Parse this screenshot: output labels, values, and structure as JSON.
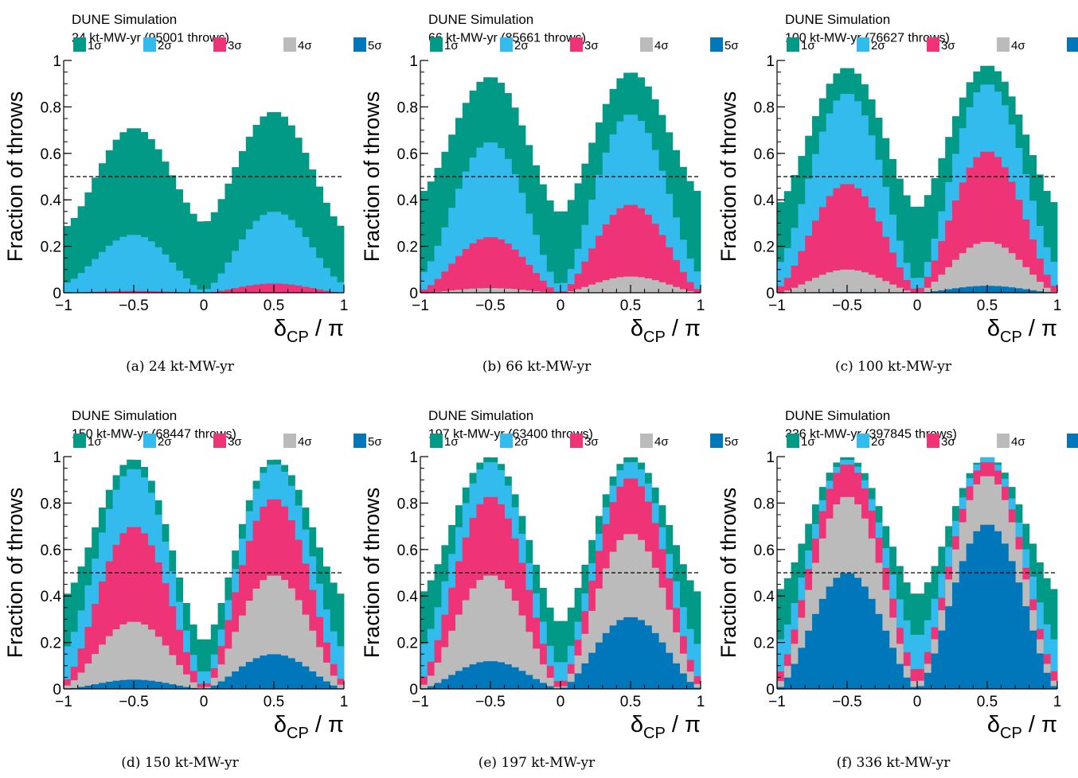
{
  "legend_levels": [
    {
      "label": "1σ",
      "color": "#009a86"
    },
    {
      "label": "2σ",
      "color": "#33bbee"
    },
    {
      "label": "3σ",
      "color": "#ee3377"
    },
    {
      "label": "4σ",
      "color": "#bbbbbb"
    },
    {
      "label": "5σ",
      "color": "#0077bb"
    }
  ],
  "common": {
    "simulation_label": "DUNE Simulation",
    "ylabel": "Fraction of throws",
    "xlabel_main": "δ",
    "xlabel_sub": "CP",
    "xlabel_tail": " / π",
    "x_ticks": [
      "−1",
      "−0.5",
      "0",
      "0.5",
      "1"
    ],
    "y_ticks": [
      "0",
      "0.2",
      "0.4",
      "0.6",
      "0.8",
      "1"
    ],
    "reference_line": 0.5
  },
  "chart_data": [
    {
      "type": "area",
      "panel": "a",
      "exposure_label": "24 kt-MW-yr (95001 throws)",
      "caption": "(a) 24 kt-MW-yr",
      "xlim": [
        -1,
        1
      ],
      "ylim": [
        0,
        1
      ],
      "series": [
        {
          "name": "1σ",
          "peak_neg": 0.71,
          "peak_pos": 0.78,
          "base_edge": 0.28,
          "dip": 0.3
        },
        {
          "name": "2σ",
          "peak_neg": 0.25,
          "peak_pos": 0.35,
          "base_edge": 0.04,
          "dip": 0.01
        },
        {
          "name": "3σ",
          "peak_neg": 0.008,
          "peak_pos": 0.04,
          "base_edge": 0.0,
          "dip": 0.0
        },
        {
          "name": "4σ",
          "peak_neg": 0.0,
          "peak_pos": 0.0,
          "base_edge": 0.0,
          "dip": 0.0
        },
        {
          "name": "5σ",
          "peak_neg": 0.0,
          "peak_pos": 0.0,
          "base_edge": 0.0,
          "dip": 0.0
        }
      ]
    },
    {
      "type": "area",
      "panel": "b",
      "exposure_label": "66 kt-MW-yr (85661 throws)",
      "caption": "(b) 66 kt-MW-yr",
      "xlim": [
        -1,
        1
      ],
      "ylim": [
        0,
        1
      ],
      "series": [
        {
          "name": "1σ",
          "peak_neg": 0.93,
          "peak_pos": 0.95,
          "base_edge": 0.43,
          "dip": 0.34
        },
        {
          "name": "2σ",
          "peak_neg": 0.65,
          "peak_pos": 0.77,
          "base_edge": 0.08,
          "dip": 0.03
        },
        {
          "name": "3σ",
          "peak_neg": 0.24,
          "peak_pos": 0.38,
          "base_edge": 0.01,
          "dip": 0.0
        },
        {
          "name": "4σ",
          "peak_neg": 0.02,
          "peak_pos": 0.07,
          "base_edge": 0.0,
          "dip": 0.0
        },
        {
          "name": "5σ",
          "peak_neg": 0.0,
          "peak_pos": 0.0,
          "base_edge": 0.0,
          "dip": 0.0
        }
      ]
    },
    {
      "type": "area",
      "panel": "c",
      "exposure_label": "100 kt-MW-yr (76627 throws)",
      "caption": "(c) 100 kt-MW-yr",
      "xlim": [
        -1,
        1
      ],
      "ylim": [
        0,
        1
      ],
      "series": [
        {
          "name": "1σ",
          "peak_neg": 0.97,
          "peak_pos": 0.98,
          "base_edge": 0.38,
          "dip": 0.36
        },
        {
          "name": "2σ",
          "peak_neg": 0.86,
          "peak_pos": 0.9,
          "base_edge": 0.12,
          "dip": 0.05
        },
        {
          "name": "3σ",
          "peak_neg": 0.47,
          "peak_pos": 0.61,
          "base_edge": 0.02,
          "dip": 0.01
        },
        {
          "name": "4σ",
          "peak_neg": 0.1,
          "peak_pos": 0.22,
          "base_edge": 0.0,
          "dip": 0.0
        },
        {
          "name": "5σ",
          "peak_neg": 0.003,
          "peak_pos": 0.03,
          "base_edge": 0.0,
          "dip": 0.0
        }
      ]
    },
    {
      "type": "area",
      "panel": "d",
      "exposure_label": "150 kt-MW-yr (68447 throws)",
      "caption": "(d) 150 kt-MW-yr",
      "xlim": [
        -1,
        1
      ],
      "ylim": [
        0,
        1
      ],
      "series": [
        {
          "name": "1σ",
          "peak_neg": 0.99,
          "peak_pos": 0.99,
          "base_edge": 0.4,
          "dip": 0.2
        },
        {
          "name": "2σ",
          "peak_neg": 0.95,
          "peak_pos": 0.97,
          "base_edge": 0.17,
          "dip": 0.06
        },
        {
          "name": "3σ",
          "peak_neg": 0.7,
          "peak_pos": 0.82,
          "base_edge": 0.03,
          "dip": 0.01
        },
        {
          "name": "4σ",
          "peak_neg": 0.29,
          "peak_pos": 0.49,
          "base_edge": 0.01,
          "dip": 0.0
        },
        {
          "name": "5σ",
          "peak_neg": 0.04,
          "peak_pos": 0.15,
          "base_edge": 0.0,
          "dip": 0.0
        }
      ]
    },
    {
      "type": "area",
      "panel": "e",
      "exposure_label": "197 kt-MW-yr (63400 throws)",
      "caption": "(e) 197 kt-MW-yr",
      "xlim": [
        -1,
        1
      ],
      "ylim": [
        0,
        1
      ],
      "series": [
        {
          "name": "1σ",
          "peak_neg": 1.0,
          "peak_pos": 1.0,
          "base_edge": 0.41,
          "dip": 0.28
        },
        {
          "name": "2σ",
          "peak_neg": 0.98,
          "peak_pos": 0.98,
          "base_edge": 0.18,
          "dip": 0.1
        },
        {
          "name": "3σ",
          "peak_neg": 0.83,
          "peak_pos": 0.91,
          "base_edge": 0.04,
          "dip": 0.02
        },
        {
          "name": "4σ",
          "peak_neg": 0.49,
          "peak_pos": 0.67,
          "base_edge": 0.01,
          "dip": 0.0
        },
        {
          "name": "5σ",
          "peak_neg": 0.12,
          "peak_pos": 0.31,
          "base_edge": 0.0,
          "dip": 0.0
        }
      ]
    },
    {
      "type": "area",
      "panel": "f",
      "exposure_label": "336 kt-MW-yr (397845 throws)",
      "caption": "(f) 336 kt-MW-yr",
      "xlim": [
        -1,
        1
      ],
      "ylim": [
        0,
        1
      ],
      "series": [
        {
          "name": "1σ",
          "peak_neg": 1.0,
          "peak_pos": 1.0,
          "base_edge": 0.42,
          "dip": 0.4
        },
        {
          "name": "2σ",
          "peak_neg": 0.99,
          "peak_pos": 1.0,
          "base_edge": 0.2,
          "dip": 0.22
        },
        {
          "name": "3σ",
          "peak_neg": 0.97,
          "peak_pos": 0.98,
          "base_edge": 0.06,
          "dip": 0.07
        },
        {
          "name": "4σ",
          "peak_neg": 0.83,
          "peak_pos": 0.92,
          "base_edge": 0.02,
          "dip": 0.02
        },
        {
          "name": "5σ",
          "peak_neg": 0.5,
          "peak_pos": 0.71,
          "base_edge": 0.0,
          "dip": 0.0
        }
      ]
    }
  ]
}
